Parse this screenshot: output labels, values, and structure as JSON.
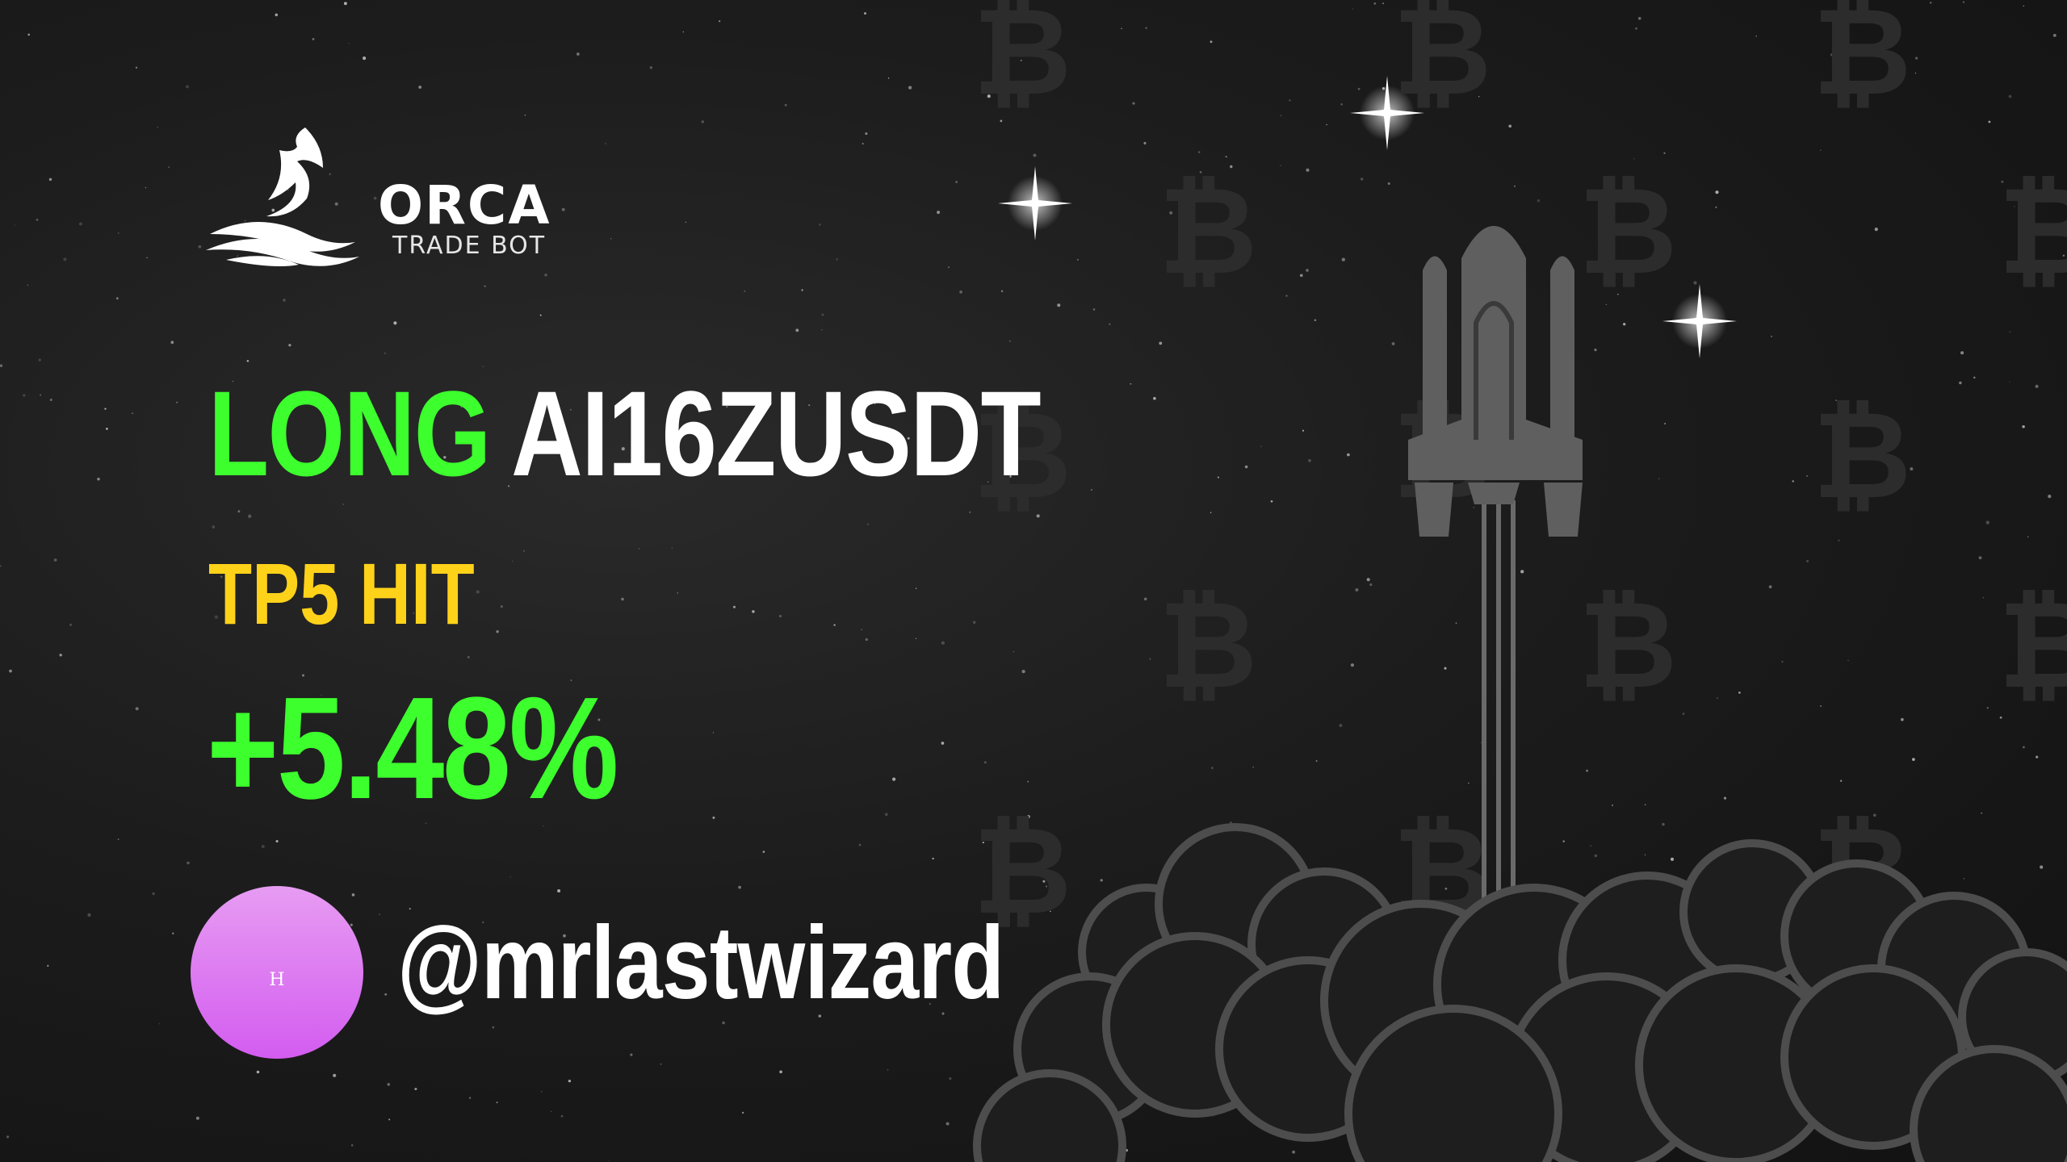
{
  "brand": {
    "name": "ORCA",
    "subtitle": "TRADE BOT"
  },
  "signal": {
    "side": "LONG",
    "pair": "AI16ZUSDT",
    "status": "TP5 HIT",
    "profit": "+5.48%"
  },
  "user": {
    "avatar_initial": "H",
    "handle": "@mrlastwizard"
  },
  "decor": {
    "background_symbol": "₿",
    "illustration": "rocket-launch-icon"
  },
  "colors": {
    "background": "#1c1c1c",
    "long_green": "#3dff2e",
    "status_yellow": "#ffd21a",
    "text_white": "#ffffff",
    "avatar_gradient_top": "#e79cf2",
    "avatar_gradient_bottom": "#d35cf0"
  }
}
